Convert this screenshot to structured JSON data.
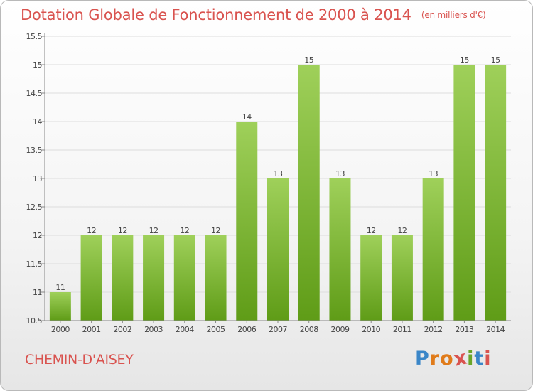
{
  "header": {
    "title": "Dotation Globale de Fonctionnement de 2000 à 2014",
    "unit": "(en milliers d'€)"
  },
  "footer": {
    "commune": "CHEMIN-D'AISEY",
    "logo_letters": [
      "P",
      "r",
      "o",
      "x",
      "i",
      "t",
      "i"
    ],
    "logo_colors": [
      "#3a86c8",
      "#e07b1a",
      "#e07b1a",
      "#d9534f",
      "#6aa628",
      "#3a86c8",
      "#d9534f"
    ]
  },
  "colors": {
    "bar_top": "#9fd05a",
    "bar_bottom": "#5f9c17",
    "axis": "#888888",
    "grid": "#dddddd",
    "text": "#444444",
    "accent": "#d9534f"
  },
  "chart_data": {
    "type": "bar",
    "categories": [
      "2000",
      "2001",
      "2002",
      "2003",
      "2004",
      "2005",
      "2006",
      "2007",
      "2008",
      "2009",
      "2010",
      "2011",
      "2012",
      "2013",
      "2014"
    ],
    "values": [
      11,
      12,
      12,
      12,
      12,
      12,
      14,
      13,
      15,
      13,
      12,
      12,
      13,
      15,
      15
    ],
    "data_labels": [
      "11",
      "12",
      "12",
      "12",
      "12",
      "12",
      "14",
      "13",
      "15",
      "13",
      "12",
      "12",
      "13",
      "15",
      "15"
    ],
    "y_ticks": [
      "10.5",
      "11",
      "11.5",
      "12",
      "12.5",
      "13",
      "13.5",
      "14",
      "14.5",
      "15",
      "15.5"
    ],
    "ylim": [
      10.5,
      15.5
    ],
    "grid": true,
    "legend": "none"
  }
}
